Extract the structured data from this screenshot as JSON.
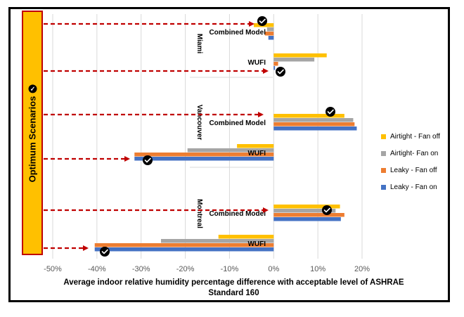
{
  "chart_data": {
    "type": "bar",
    "orientation": "horizontal",
    "xlabel": "Average indoor relative humidity percentage difference with acceptable level of ASHRAE Standard 160",
    "xlim": [
      -50,
      20
    ],
    "xticks": [
      -50,
      -40,
      -30,
      -20,
      -10,
      0,
      10,
      20
    ],
    "xtick_labels": [
      "-50%",
      "-40%",
      "-30%",
      "-20%",
      "-10%",
      "0%",
      "10%",
      "20%"
    ],
    "grid": "vertical",
    "legend_position": "right",
    "cities": [
      "Miami",
      "Vancouver",
      "Montreal"
    ],
    "groups": [
      {
        "city": "Miami",
        "label": "Combined Model",
        "values": {
          "airtight_fan_off": -4.5,
          "airtight_fan_on": -1.5,
          "leaky_fan_off": -2.0,
          "leaky_fan_on": -1.2
        }
      },
      {
        "city": "Miami",
        "label": "WUFI",
        "values": {
          "airtight_fan_off": 12.0,
          "airtight_fan_on": 9.2,
          "leaky_fan_off": 1.0,
          "leaky_fan_on": 0.3
        }
      },
      {
        "city": "Vancouver",
        "label": "Combined Model",
        "values": {
          "airtight_fan_off": 16.0,
          "airtight_fan_on": 18.0,
          "leaky_fan_off": 18.3,
          "leaky_fan_on": 18.8
        }
      },
      {
        "city": "Vancouver",
        "label": "WUFI",
        "values": {
          "airtight_fan_off": -8.3,
          "airtight_fan_on": -19.5,
          "leaky_fan_off": -31.5,
          "leaky_fan_on": -31.5
        }
      },
      {
        "city": "Montreal",
        "label": "Combined Model",
        "values": {
          "airtight_fan_off": 15.0,
          "airtight_fan_on": 14.0,
          "leaky_fan_off": 16.0,
          "leaky_fan_on": 15.2
        }
      },
      {
        "city": "Montreal",
        "label": "WUFI",
        "values": {
          "airtight_fan_off": -12.5,
          "airtight_fan_on": -25.5,
          "leaky_fan_off": -40.5,
          "leaky_fan_on": -40.5
        }
      }
    ],
    "series": [
      {
        "key": "airtight_fan_off",
        "name": "Airtight - Fan off",
        "color": "#ffc000"
      },
      {
        "key": "airtight_fan_on",
        "name": "Airtight- Fan on",
        "color": "#a5a5a5"
      },
      {
        "key": "leaky_fan_off",
        "name": "Leaky - Fan off",
        "color": "#ed7d31"
      },
      {
        "key": "leaky_fan_on",
        "name": "Leaky - Fan on",
        "color": "#4472c4"
      }
    ],
    "optimum_markers": [
      {
        "group": 0,
        "series": "airtight_fan_off"
      },
      {
        "group": 1,
        "series": "leaky_fan_on"
      },
      {
        "group": 2,
        "series": "airtight_fan_off"
      },
      {
        "group": 3,
        "series": "leaky_fan_on"
      },
      {
        "group": 4,
        "series": "airtight_fan_on"
      },
      {
        "group": 5,
        "series": "leaky_fan_on"
      }
    ]
  },
  "annotation": {
    "label": "Optimum Scenarios",
    "arrow_color": "#c00000",
    "box_color": "#ffc000"
  }
}
